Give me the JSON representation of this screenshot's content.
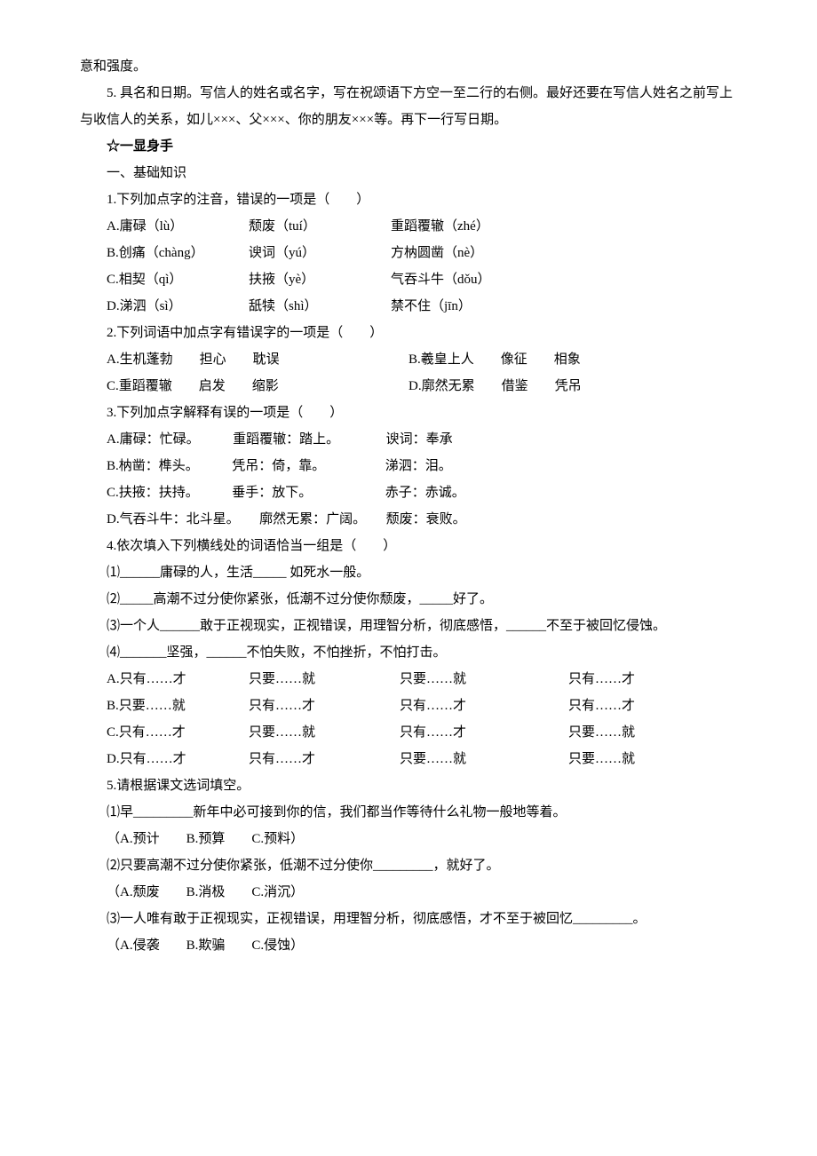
{
  "intro": {
    "line1": "意和强度。",
    "line2": "5. 具名和日期。写信人的姓名或名字，写在祝颂语下方空一至二行的右侧。最好还要在写信人姓名之前写上与收信人的关系，如儿×××、父×××、你的朋友×××等。再下一行写日期。"
  },
  "section_title": "☆一显身手",
  "subsection1": "一、基础知识",
  "q1": {
    "stem": "1.下列加点字的注音，错误的一项是（　　）",
    "a1": "A.庸碌（lù）",
    "a2": "颓废（tuí）",
    "a3": "重蹈覆辙（zhé）",
    "b1": "B.创痛（chàng）",
    "b2": "谀词（yú）",
    "b3": "方枘圆凿（nè）",
    "c1": "C.相契（qì）",
    "c2": "扶掖（yè）",
    "c3": "气吞斗牛（dǒu）",
    "d1": "D.涕泗（sì）",
    "d2": "舐犊（shì）",
    "d3": "禁不住（jīn）"
  },
  "q2": {
    "stem": "2.下列词语中加点字有错误字的一项是（　　）",
    "a_left": "A.生机蓬勃　　担心　　耽误",
    "a_right": "B.羲皇上人　　像征　　相象",
    "c_left": "C.重蹈覆辙　　启发　　缩影",
    "c_right": "D.廓然无累　　借鉴　　凭吊"
  },
  "q3": {
    "stem": "3.下列加点字解释有误的一项是（　　）",
    "a": "A.庸碌：忙碌。　　　重蹈覆辙：踏上。　　　　谀词：奉承",
    "b": "B.枘凿：榫头。　　　凭吊：倚，靠。　　　　　涕泗：泪。",
    "c": "C.扶掖：扶持。　　　垂手：放下。　　　　　　赤子：赤诚。",
    "d": "D.气吞斗牛：北斗星。　　廓然无累：广阔。　　颓废：衰败。"
  },
  "q4": {
    "stem": "4.依次填入下列横线处的词语恰当一组是（　　）",
    "s1": "⑴______庸碌的人，生活_____ 如死水一般。",
    "s2": "⑵_____高潮不过分使你紧张，低潮不过分使你颓废，_____好了。",
    "s3": "⑶一个人______敢于正视现实，正视错误，用理智分析，彻底感悟，______不至于被回忆侵蚀。",
    "s4": "⑷_______坚强，______不怕失败，不怕挫折，不怕打击。",
    "a1": "A.只有……才",
    "a2": "只要……就",
    "a3": "只要……就",
    "a4": "只有……才",
    "b1": "B.只要……就",
    "b2": "只有……才",
    "b3": "只有……才",
    "b4": "只有……才",
    "c1": "C.只有……才",
    "c2": "只要……就",
    "c3": "只有……才",
    "c4": "只要……就",
    "d1": "D.只有……才",
    "d2": "只有……才",
    "d3": "只要……就",
    "d4": "只要……就"
  },
  "q5": {
    "stem": "5.请根据课文选词填空。",
    "s1": "⑴早_________新年中必可接到你的信，我们都当作等待什么礼物一般地等着。",
    "c1": "（A.预计　　B.预算　　C.预料）",
    "s2": "⑵只要高潮不过分使你紧张，低潮不过分使你_________，就好了。",
    "c2": "（A.颓废　　B.消极　　C.消沉）",
    "s3": "⑶一人唯有敢于正视现实，正视错误，用理智分析，彻底感悟，才不至于被回忆_________。",
    "c3": "（A.侵袭　　B.欺骗　　C.侵蚀）"
  },
  "colors": {
    "text": "#000000",
    "background": "#ffffff"
  },
  "typography": {
    "font_family": "SimSun",
    "font_size_pt": 12,
    "line_height": 2.0
  }
}
